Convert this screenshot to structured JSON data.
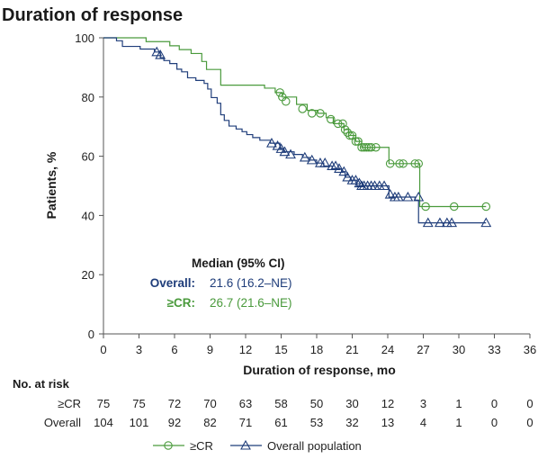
{
  "chart_data": {
    "type": "line",
    "title": "Duration of response",
    "xlabel": "Duration of response, mo",
    "ylabel": "Patients, %",
    "xlim": [
      0,
      36
    ],
    "ylim": [
      0,
      100
    ],
    "x_ticks": [
      0,
      3,
      6,
      9,
      12,
      15,
      18,
      21,
      24,
      27,
      30,
      33,
      36
    ],
    "y_ticks": [
      0,
      20,
      40,
      60,
      80,
      100
    ],
    "grid": false,
    "legend_position": "bottom-center",
    "median_box": {
      "heading": "Median (95% CI)",
      "rows": [
        {
          "label": "Overall:",
          "value": "21.6 (16.2–NE)",
          "color": "#1f3d7a"
        },
        {
          "label": "≥CR:",
          "value": "26.7 (21.6–NE)",
          "color": "#4a9a3c"
        }
      ]
    },
    "series": [
      {
        "name": "≥CR",
        "color": "#4a9a3c",
        "marker": "circle",
        "steps": [
          [
            0,
            100
          ],
          [
            3.6,
            98.7
          ],
          [
            5.6,
            97.3
          ],
          [
            6.4,
            96
          ],
          [
            7.4,
            94.7
          ],
          [
            8.3,
            92
          ],
          [
            8.7,
            89.3
          ],
          [
            9.9,
            84
          ],
          [
            13.6,
            83
          ],
          [
            14.5,
            81.5
          ],
          [
            15.1,
            80
          ],
          [
            16.3,
            77.5
          ],
          [
            17.2,
            75.5
          ],
          [
            18.1,
            74.5
          ],
          [
            18.8,
            73
          ],
          [
            19.4,
            71
          ],
          [
            20.3,
            69
          ],
          [
            20.7,
            67
          ],
          [
            21.3,
            65
          ],
          [
            21.8,
            63
          ],
          [
            24.1,
            57.5
          ],
          [
            26.7,
            43
          ],
          [
            32.3,
            43
          ]
        ],
        "censored": [
          [
            14.9,
            81.5
          ],
          [
            15.1,
            80
          ],
          [
            15.4,
            78.5
          ],
          [
            16.8,
            76
          ],
          [
            17.6,
            74.5
          ],
          [
            18.3,
            74.5
          ],
          [
            19.2,
            72.5
          ],
          [
            19.8,
            71
          ],
          [
            20.2,
            71
          ],
          [
            20.4,
            69
          ],
          [
            20.6,
            68
          ],
          [
            20.8,
            67
          ],
          [
            21.0,
            67
          ],
          [
            21.3,
            65
          ],
          [
            21.5,
            65
          ],
          [
            21.8,
            63
          ],
          [
            22.0,
            63
          ],
          [
            22.2,
            63
          ],
          [
            22.4,
            63
          ],
          [
            22.6,
            63
          ],
          [
            23.0,
            63
          ],
          [
            24.2,
            57.5
          ],
          [
            25.0,
            57.5
          ],
          [
            25.3,
            57.5
          ],
          [
            26.3,
            57.5
          ],
          [
            26.6,
            57.5
          ],
          [
            27.2,
            43
          ],
          [
            29.6,
            43
          ],
          [
            32.3,
            43
          ]
        ]
      },
      {
        "name": "Overall population",
        "color": "#1f3d7a",
        "marker": "triangle",
        "steps": [
          [
            0,
            100
          ],
          [
            1.1,
            99
          ],
          [
            1.6,
            97.1
          ],
          [
            3.1,
            96.2
          ],
          [
            4.3,
            95.2
          ],
          [
            4.8,
            93.3
          ],
          [
            5.1,
            92.3
          ],
          [
            5.6,
            91.3
          ],
          [
            6.2,
            89.4
          ],
          [
            6.6,
            88.5
          ],
          [
            7.1,
            86.5
          ],
          [
            7.8,
            85.6
          ],
          [
            8.5,
            84.6
          ],
          [
            8.8,
            82.7
          ],
          [
            9.1,
            79.8
          ],
          [
            9.6,
            77.9
          ],
          [
            9.9,
            74
          ],
          [
            10.2,
            72.1
          ],
          [
            10.6,
            70.2
          ],
          [
            11.2,
            69.2
          ],
          [
            11.7,
            68.3
          ],
          [
            12.1,
            67.3
          ],
          [
            12.6,
            66.3
          ],
          [
            13.2,
            65.4
          ],
          [
            14.1,
            64.4
          ],
          [
            14.9,
            62.5
          ],
          [
            15.2,
            61.5
          ],
          [
            16.1,
            60.6
          ],
          [
            16.8,
            59.6
          ],
          [
            17.4,
            58.7
          ],
          [
            18.0,
            57.7
          ],
          [
            18.6,
            56.7
          ],
          [
            19.3,
            55.8
          ],
          [
            20.1,
            54.8
          ],
          [
            20.4,
            52.9
          ],
          [
            20.9,
            51.9
          ],
          [
            21.4,
            50
          ],
          [
            24.1,
            46.2
          ],
          [
            26.3,
            45.2
          ],
          [
            26.6,
            37.5
          ],
          [
            32.3,
            37.5
          ]
        ],
        "censored": [
          [
            4.5,
            95.2
          ],
          [
            4.8,
            94.2
          ],
          [
            14.2,
            64.4
          ],
          [
            14.7,
            63.5
          ],
          [
            15.0,
            62.5
          ],
          [
            15.3,
            61.5
          ],
          [
            15.8,
            60.6
          ],
          [
            17.0,
            59.6
          ],
          [
            17.6,
            58.7
          ],
          [
            18.3,
            57.7
          ],
          [
            18.7,
            57.7
          ],
          [
            19.3,
            56.7
          ],
          [
            19.6,
            56.7
          ],
          [
            19.9,
            55.8
          ],
          [
            20.3,
            54.8
          ],
          [
            20.6,
            52.9
          ],
          [
            21.0,
            51.9
          ],
          [
            21.3,
            51.9
          ],
          [
            21.6,
            50.9
          ],
          [
            21.8,
            50
          ],
          [
            22.0,
            50
          ],
          [
            22.3,
            50
          ],
          [
            22.6,
            50
          ],
          [
            22.9,
            50
          ],
          [
            23.3,
            50
          ],
          [
            23.7,
            50
          ],
          [
            24.2,
            47.1
          ],
          [
            24.6,
            46.2
          ],
          [
            24.9,
            46.2
          ],
          [
            25.7,
            46.2
          ],
          [
            26.6,
            46.2
          ],
          [
            27.4,
            37.5
          ],
          [
            28.4,
            37.5
          ],
          [
            29.0,
            37.5
          ],
          [
            29.4,
            37.5
          ],
          [
            32.3,
            37.5
          ]
        ]
      }
    ],
    "risk_table": {
      "heading": "No. at risk",
      "times": [
        0,
        3,
        6,
        9,
        12,
        15,
        18,
        21,
        24,
        27,
        30,
        33,
        36
      ],
      "rows": [
        {
          "label": "≥CR",
          "values": [
            75,
            75,
            72,
            70,
            63,
            58,
            50,
            30,
            12,
            3,
            1,
            0,
            0
          ]
        },
        {
          "label": "Overall",
          "values": [
            104,
            101,
            92,
            82,
            71,
            61,
            53,
            32,
            13,
            4,
            1,
            0,
            0
          ]
        }
      ]
    },
    "legend": [
      {
        "label": "≥CR",
        "color": "#4a9a3c",
        "marker": "circle"
      },
      {
        "label": "Overall population",
        "color": "#1f3d7a",
        "marker": "triangle"
      }
    ]
  }
}
